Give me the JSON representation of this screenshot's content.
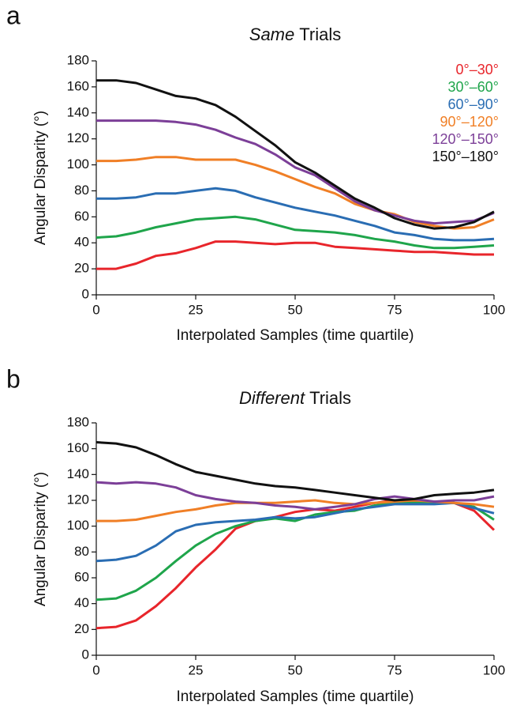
{
  "chart_data": [
    {
      "type": "line",
      "panel_label": "a",
      "title": {
        "italic": "Same",
        "plain": "Trials"
      },
      "xlabel": "Interpolated Samples (time quartile)",
      "ylabel": "Angular Disparity (°)",
      "xlim": [
        0,
        100
      ],
      "ylim": [
        0,
        180
      ],
      "xticks": [
        0,
        25,
        50,
        75,
        100
      ],
      "yticks": [
        0,
        20,
        40,
        60,
        80,
        100,
        120,
        140,
        160,
        180
      ],
      "legend": "upper right",
      "x": [
        0,
        5,
        10,
        15,
        20,
        25,
        30,
        35,
        40,
        45,
        50,
        55,
        60,
        65,
        70,
        75,
        80,
        85,
        90,
        95,
        100
      ],
      "series": [
        {
          "name": "0°–30°",
          "color": "#e8252b",
          "values": [
            20,
            20,
            24,
            30,
            32,
            36,
            41,
            41,
            40,
            39,
            40,
            40,
            37,
            36,
            35,
            34,
            33,
            33,
            32,
            31,
            31
          ]
        },
        {
          "name": "30°–60°",
          "color": "#1fa54b",
          "values": [
            44,
            45,
            48,
            52,
            55,
            58,
            59,
            60,
            58,
            54,
            50,
            49,
            48,
            46,
            43,
            41,
            38,
            36,
            36,
            37,
            38
          ]
        },
        {
          "name": "60°–90°",
          "color": "#2a6db3",
          "values": [
            74,
            74,
            75,
            78,
            78,
            80,
            82,
            80,
            75,
            71,
            67,
            64,
            61,
            57,
            53,
            48,
            46,
            43,
            42,
            42,
            43
          ]
        },
        {
          "name": "90°–120°",
          "color": "#f07f26",
          "values": [
            103,
            103,
            104,
            106,
            106,
            104,
            104,
            104,
            100,
            95,
            89,
            83,
            78,
            70,
            65,
            62,
            56,
            53,
            51,
            52,
            58
          ]
        },
        {
          "name": "120°–150°",
          "color": "#7c3f98",
          "values": [
            134,
            134,
            134,
            134,
            133,
            131,
            127,
            121,
            116,
            108,
            98,
            92,
            82,
            72,
            65,
            61,
            57,
            55,
            56,
            57,
            63
          ]
        },
        {
          "name": "150°–180°",
          "color": "#111111",
          "values": [
            165,
            165,
            163,
            158,
            153,
            151,
            146,
            137,
            126,
            115,
            102,
            94,
            84,
            74,
            67,
            59,
            54,
            51,
            52,
            56,
            64
          ]
        }
      ]
    },
    {
      "type": "line",
      "panel_label": "b",
      "title": {
        "italic": "Different",
        "plain": "Trials"
      },
      "xlabel": "Interpolated Samples (time quartile)",
      "ylabel": "Angular Disparity (°)",
      "xlim": [
        0,
        100
      ],
      "ylim": [
        0,
        180
      ],
      "xticks": [
        0,
        25,
        50,
        75,
        100
      ],
      "yticks": [
        0,
        20,
        40,
        60,
        80,
        100,
        120,
        140,
        160,
        180
      ],
      "x": [
        0,
        5,
        10,
        15,
        20,
        25,
        30,
        35,
        40,
        45,
        50,
        55,
        60,
        65,
        70,
        75,
        80,
        85,
        90,
        95,
        100
      ],
      "series": [
        {
          "color": "#e8252b",
          "values": [
            21,
            22,
            27,
            38,
            52,
            68,
            82,
            98,
            104,
            107,
            111,
            113,
            112,
            115,
            118,
            120,
            119,
            119,
            118,
            112,
            97
          ]
        },
        {
          "color": "#1fa54b",
          "values": [
            43,
            44,
            50,
            60,
            73,
            85,
            94,
            100,
            104,
            106,
            104,
            109,
            111,
            112,
            116,
            118,
            118,
            118,
            118,
            115,
            105
          ]
        },
        {
          "color": "#2a6db3",
          "values": [
            73,
            74,
            77,
            85,
            96,
            101,
            103,
            104,
            105,
            107,
            106,
            107,
            110,
            113,
            115,
            117,
            117,
            117,
            118,
            114,
            110
          ]
        },
        {
          "color": "#f07f26",
          "values": [
            104,
            104,
            105,
            108,
            111,
            113,
            116,
            118,
            118,
            118,
            119,
            120,
            118,
            117,
            118,
            119,
            120,
            119,
            118,
            117,
            115
          ]
        },
        {
          "color": "#7c3f98",
          "values": [
            134,
            133,
            134,
            133,
            130,
            124,
            121,
            119,
            118,
            116,
            115,
            113,
            115,
            117,
            121,
            123,
            121,
            119,
            120,
            120,
            123
          ]
        },
        {
          "color": "#111111",
          "values": [
            165,
            164,
            161,
            155,
            148,
            142,
            139,
            136,
            133,
            131,
            130,
            128,
            126,
            124,
            122,
            120,
            121,
            124,
            125,
            126,
            128
          ]
        }
      ]
    }
  ]
}
